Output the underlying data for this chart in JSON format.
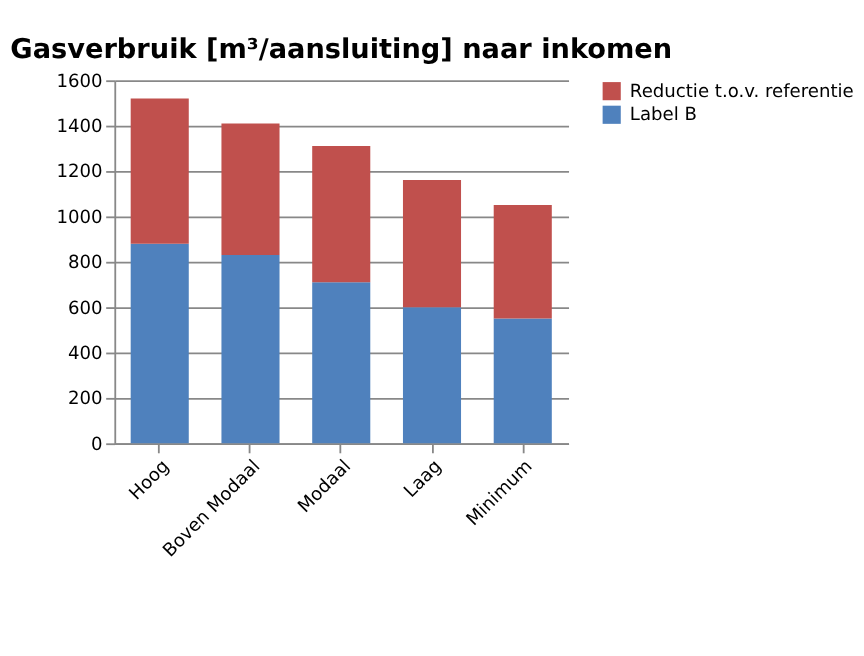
{
  "chart_data": {
    "type": "bar",
    "stacked": true,
    "title": "Gasverbruik [m³/aansluiting] naar inkomen",
    "categories": [
      "Hoog",
      "Boven Modaal",
      "Modaal",
      "Laag",
      "Minimum"
    ],
    "series": [
      {
        "name": "Label B",
        "color": "#4f81bd",
        "values": [
          880,
          830,
          710,
          600,
          550
        ]
      },
      {
        "name": "Reductie t.o.v. referentie",
        "color": "#c0504d",
        "values": [
          640,
          580,
          600,
          560,
          500
        ]
      }
    ],
    "ylim": [
      0,
      1600
    ],
    "yticks": [
      0,
      200,
      400,
      600,
      800,
      1000,
      1200,
      1400,
      1600
    ],
    "grid": "y",
    "legend": "right"
  }
}
